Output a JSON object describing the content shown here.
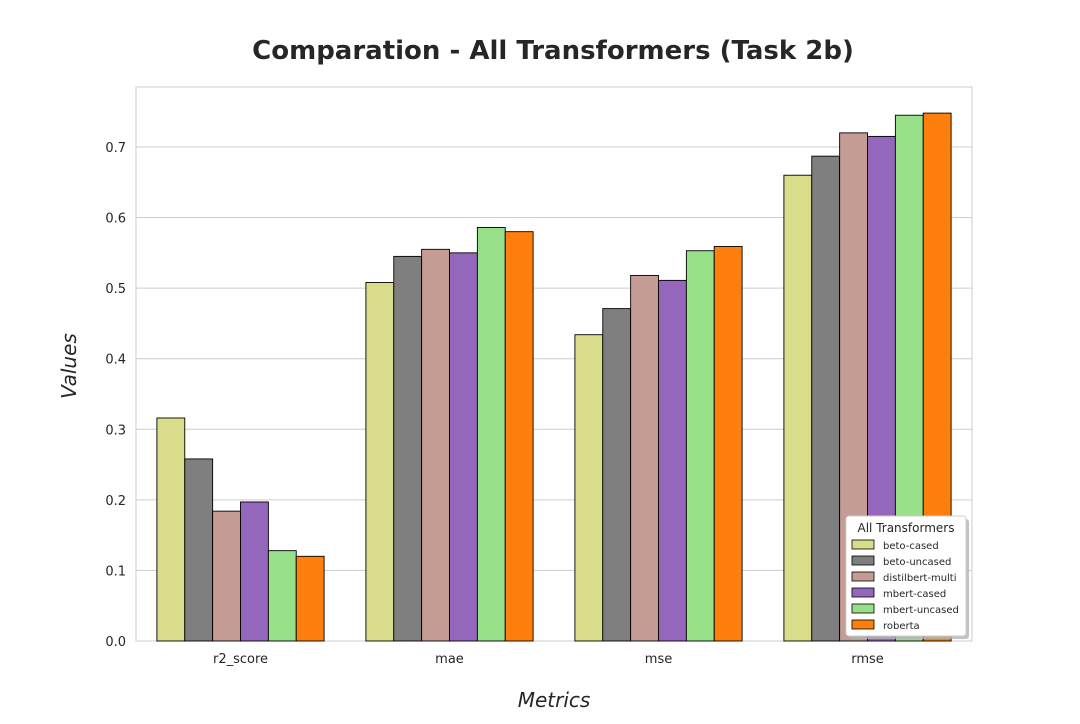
{
  "chart_data": {
    "type": "bar",
    "title": "Comparation - All Transformers (Task 2b)",
    "xlabel": "Metrics",
    "ylabel": "Values",
    "categories": [
      "r2_score",
      "mae",
      "mse",
      "rmse"
    ],
    "ylim": [
      0,
      0.785
    ],
    "yticks": [
      0.0,
      0.1,
      0.2,
      0.3,
      0.4,
      0.5,
      0.6,
      0.7
    ],
    "ytick_labels": [
      "0.0",
      "0.1",
      "0.2",
      "0.3",
      "0.4",
      "0.5",
      "0.6",
      "0.7"
    ],
    "grid": true,
    "legend": {
      "title": "All Transformers",
      "placement": "bottom-right"
    },
    "series": [
      {
        "name": "beto-cased",
        "color": "#d9dc8b",
        "values": [
          0.316,
          0.508,
          0.434,
          0.66
        ]
      },
      {
        "name": "beto-uncased",
        "color": "#7f7f7f",
        "values": [
          0.258,
          0.545,
          0.471,
          0.687
        ]
      },
      {
        "name": "distilbert-multi",
        "color": "#c49c94",
        "values": [
          0.184,
          0.555,
          0.518,
          0.72
        ]
      },
      {
        "name": "mbert-cased",
        "color": "#9467bd",
        "values": [
          0.197,
          0.55,
          0.511,
          0.715
        ]
      },
      {
        "name": "mbert-uncased",
        "color": "#98df8a",
        "values": [
          0.128,
          0.586,
          0.553,
          0.745
        ]
      },
      {
        "name": "roberta",
        "color": "#ff7f0e",
        "values": [
          0.12,
          0.58,
          0.559,
          0.748
        ]
      }
    ]
  }
}
